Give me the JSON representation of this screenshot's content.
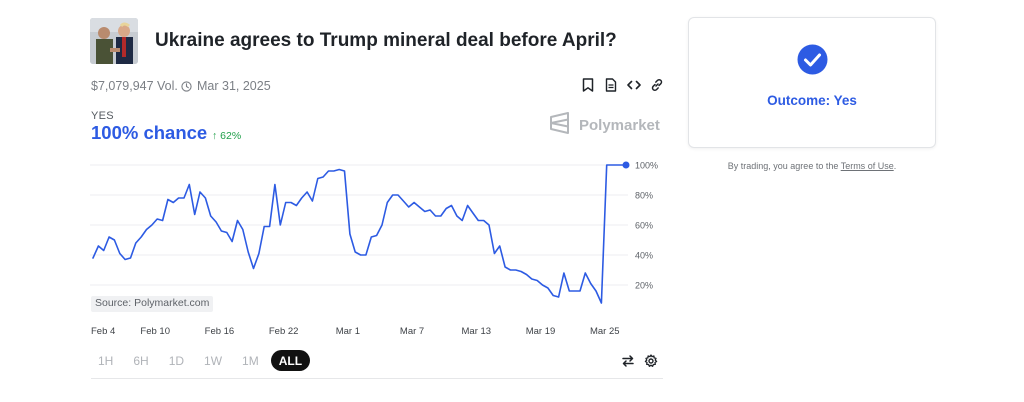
{
  "market": {
    "title": "Ukraine agrees to Trump mineral deal before April?",
    "volume": "$7,079,947 Vol.",
    "end_date": "Mar 31, 2025",
    "action_icons": [
      "bookmark-icon",
      "document-icon",
      "embed-icon",
      "link-icon"
    ]
  },
  "probability": {
    "outcome_label": "YES",
    "chance_text": "100% chance",
    "delta_text": "62%",
    "delta_direction": "up"
  },
  "brand": {
    "name": "Polymarket"
  },
  "chart_data": {
    "type": "line",
    "title": "",
    "xlabel": "",
    "ylabel": "",
    "x_tick_labels": [
      "Feb 4",
      "Feb 10",
      "Feb 16",
      "Feb 22",
      "Mar 1",
      "Mar 7",
      "Mar 13",
      "Mar 19",
      "Mar 25"
    ],
    "y_tick_labels": [
      "100%",
      "80%",
      "60%",
      "40%",
      "20%"
    ],
    "ylim": [
      0,
      100
    ],
    "grid": true,
    "source_text": "Source: Polymarket.com",
    "series": [
      {
        "color": "#2d5be3",
        "x": [
          0,
          0.5,
          1,
          1.5,
          2,
          2.5,
          3,
          3.5,
          4,
          4.5,
          5,
          5.5,
          6,
          6.5,
          7,
          7.5,
          8,
          8.5,
          9,
          9.5,
          10,
          10.5,
          11,
          11.5,
          12,
          12.5,
          13,
          13.5,
          14,
          14.5,
          15,
          15.5,
          16,
          16.5,
          17,
          17.5,
          18,
          18.5,
          19,
          19.5,
          20,
          20.5,
          21,
          21.5,
          22,
          22.5,
          23,
          23.5,
          24,
          24.5,
          25,
          25.5,
          26,
          26.5,
          27,
          27.5,
          28,
          28.5,
          29,
          29.5,
          30,
          30.5,
          31,
          31.5,
          32,
          32.5,
          33,
          33.5,
          34,
          34.5,
          35,
          35.5,
          36,
          36.5,
          37,
          37.5,
          38,
          38.5,
          39,
          39.5,
          40,
          40.5,
          41,
          41.5,
          42,
          42.5,
          43,
          43.5,
          44,
          44.5,
          45,
          45.5,
          46,
          46.5,
          47,
          47.5,
          48,
          48.5,
          49,
          49.5,
          49.8
        ],
        "y": [
          38,
          46,
          43,
          52,
          50,
          41,
          37,
          38,
          48,
          52,
          57,
          60,
          64,
          63,
          77,
          75,
          78,
          78,
          87,
          67,
          82,
          78,
          66,
          62,
          56,
          55,
          49,
          63,
          57,
          42,
          31,
          41,
          59,
          59,
          87,
          60,
          75,
          75,
          73,
          78,
          82,
          76,
          91,
          92,
          96,
          96,
          97,
          96,
          54,
          42,
          40,
          40,
          52,
          53,
          60,
          75,
          80,
          80,
          76,
          72,
          75,
          72,
          69,
          70,
          66,
          66,
          71,
          73,
          66,
          63,
          73,
          68,
          63,
          63,
          60,
          41,
          46,
          32,
          30,
          30,
          29,
          27,
          24,
          23,
          20,
          18,
          13,
          12,
          28,
          16,
          16,
          16,
          28,
          21,
          16,
          8,
          100,
          100,
          100,
          100,
          100
        ]
      }
    ]
  },
  "range_controls": {
    "options": [
      "1H",
      "6H",
      "1D",
      "1W",
      "1M",
      "ALL"
    ],
    "selected": "ALL"
  },
  "chart_controls": [
    "swap-icon",
    "gear-icon"
  ],
  "outcome_card": {
    "text": "Outcome: Yes"
  },
  "terms": {
    "prefix": "By trading, you agree to the ",
    "link": "Terms of Use",
    "suffix": "."
  },
  "colors": {
    "accent": "#2d5be3",
    "positive": "#22a04b",
    "muted": "#b0b3b8"
  }
}
